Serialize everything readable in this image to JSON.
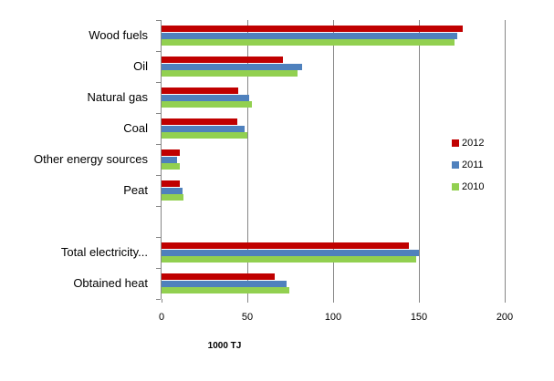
{
  "chart_data": {
    "type": "bar",
    "orientation": "horizontal",
    "title": "",
    "xlabel": "1000 TJ",
    "ylabel": "",
    "xlim": [
      0,
      200
    ],
    "xticks": [
      0,
      50,
      100,
      150,
      200
    ],
    "grid": true,
    "legend_position": "right",
    "categories": [
      "Wood fuels",
      "Oil",
      "Natural gas",
      "Coal",
      "Other energy sources",
      "Peat",
      "",
      "Total electricity...",
      "Obtained heat"
    ],
    "series": [
      {
        "name": "2012",
        "color": "#C00000",
        "values": [
          175.6,
          70.7,
          44.9,
          44.4,
          10.9,
          10.9,
          null,
          144.2,
          66.1
        ]
      },
      {
        "name": "2011",
        "color": "#4F81BD",
        "values": [
          172.4,
          82.1,
          51.3,
          48.6,
          9.3,
          12.5,
          null,
          150.1,
          73.0
        ]
      },
      {
        "name": "2010",
        "color": "#92D050",
        "values": [
          170.8,
          79.4,
          52.9,
          50.0,
          10.9,
          13.0,
          null,
          148.5,
          74.6
        ]
      }
    ]
  },
  "axis": {
    "tick_labels": [
      "0",
      "50",
      "100",
      "150",
      "200"
    ],
    "xlabel": "1000 TJ"
  },
  "legend": [
    {
      "label": "2012",
      "color": "#C00000"
    },
    {
      "label": "2011",
      "color": "#4F81BD"
    },
    {
      "label": "2010",
      "color": "#92D050"
    }
  ]
}
